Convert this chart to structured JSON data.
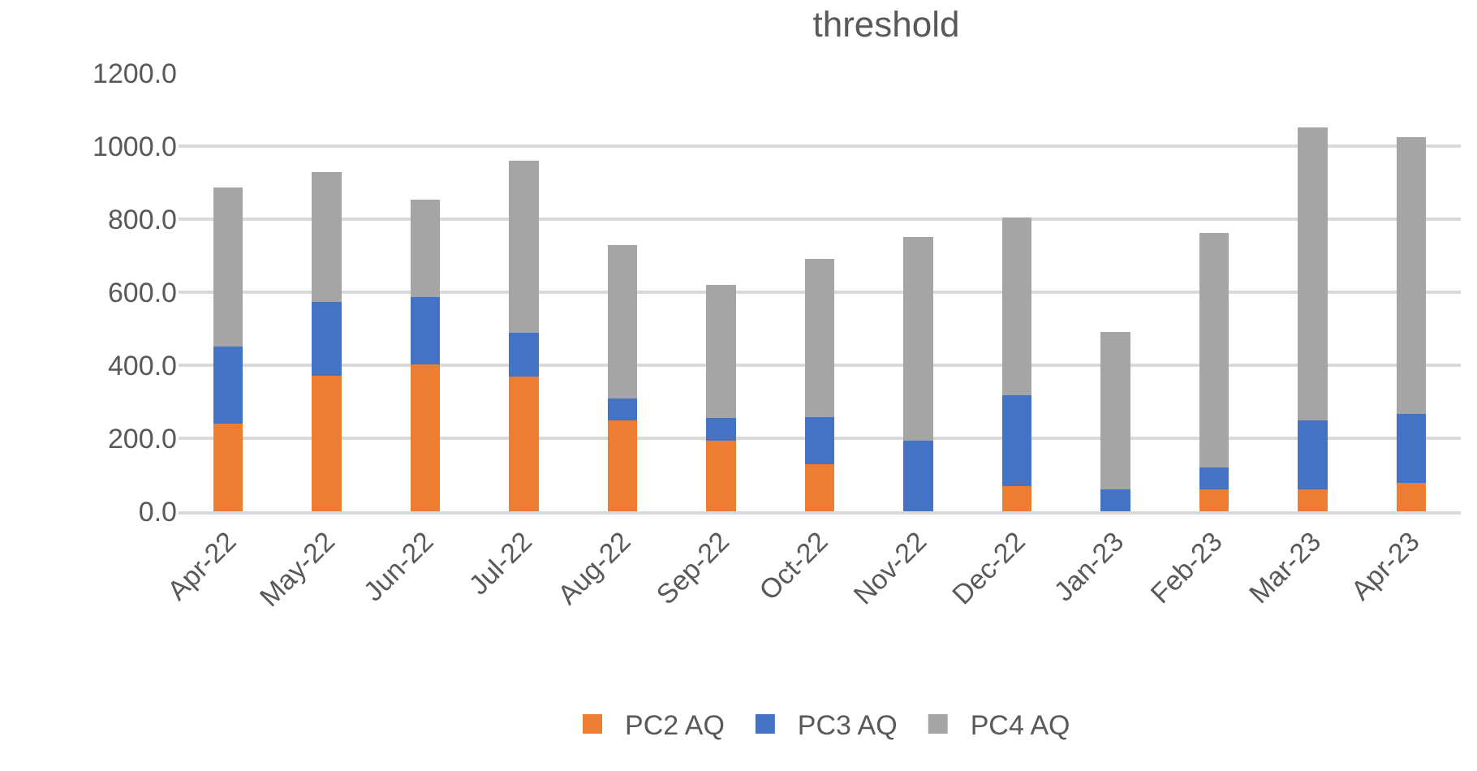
{
  "chart_data": {
    "type": "bar",
    "title": "threshold",
    "stacked": true,
    "categories": [
      "Apr-22",
      "May-22",
      "Jun-22",
      "Jul-22",
      "Aug-22",
      "Sep-22",
      "Oct-22",
      "Nov-22",
      "Dec-22",
      "Jan-23",
      "Feb-23",
      "Mar-23",
      "Apr-23"
    ],
    "series": [
      {
        "name": "PC2 AQ",
        "color": "#ed7d31",
        "values": [
          241,
          372,
          402,
          369,
          250,
          194,
          130,
          0,
          69,
          0,
          59,
          59,
          77
        ]
      },
      {
        "name": "PC3 AQ",
        "color": "#4472c4",
        "values": [
          210,
          201,
          185,
          120,
          59,
          61,
          128,
          194,
          249,
          60,
          62,
          189,
          190
        ]
      },
      {
        "name": "PC4 AQ",
        "color": "#a5a5a5",
        "values": [
          436,
          355,
          267,
          471,
          420,
          364,
          433,
          558,
          486,
          431,
          641,
          803,
          757
        ]
      }
    ],
    "ylim": [
      0,
      1200
    ],
    "yticks": [
      {
        "value": 0,
        "label": "0.0"
      },
      {
        "value": 200,
        "label": "200.0"
      },
      {
        "value": 400,
        "label": "400.0"
      },
      {
        "value": 600,
        "label": "600.0"
      },
      {
        "value": 800,
        "label": "800.0"
      },
      {
        "value": 1000,
        "label": "1000.0"
      },
      {
        "value": 1200,
        "label": "1200.0"
      }
    ],
    "grid": "y",
    "legend": "bottom"
  }
}
